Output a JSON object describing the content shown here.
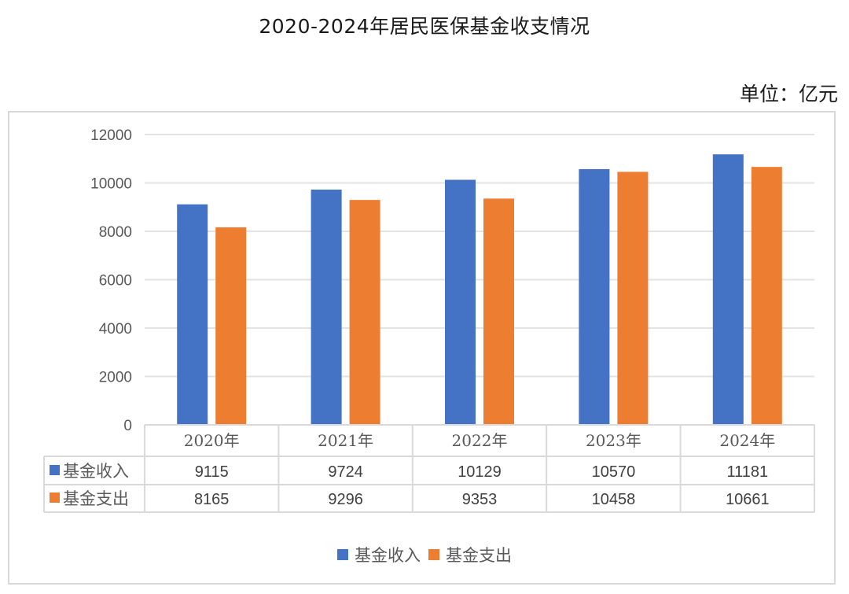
{
  "header": {
    "title": "2020-2024年居民医保基金收支情况",
    "unit": "单位：亿元"
  },
  "colors": {
    "income": "#4472C4",
    "expense": "#ED7D31",
    "grid": "#e3e3e3",
    "border": "#d9d9d9"
  },
  "chart_data": {
    "type": "bar",
    "title": "2020-2024年居民医保基金收支情况",
    "subtitle": "单位：亿元",
    "categories": [
      "2020年",
      "2021年",
      "2022年",
      "2023年",
      "2024年"
    ],
    "series": [
      {
        "name": "基金收入",
        "color": "#4472C4",
        "values": [
          9115,
          9724,
          10129,
          10570,
          11181
        ]
      },
      {
        "name": "基金支出",
        "color": "#ED7D31",
        "values": [
          8165,
          9296,
          9353,
          10458,
          10661
        ]
      }
    ],
    "xlabel": "",
    "ylabel": "",
    "ylim": [
      0,
      12000
    ],
    "yticks": [
      0,
      2000,
      4000,
      6000,
      8000,
      10000,
      12000
    ],
    "grid": true,
    "legend_position": "bottom",
    "data_table": true
  },
  "legend": {
    "items": [
      {
        "label": "基金收入"
      },
      {
        "label": "基金支出"
      }
    ]
  }
}
